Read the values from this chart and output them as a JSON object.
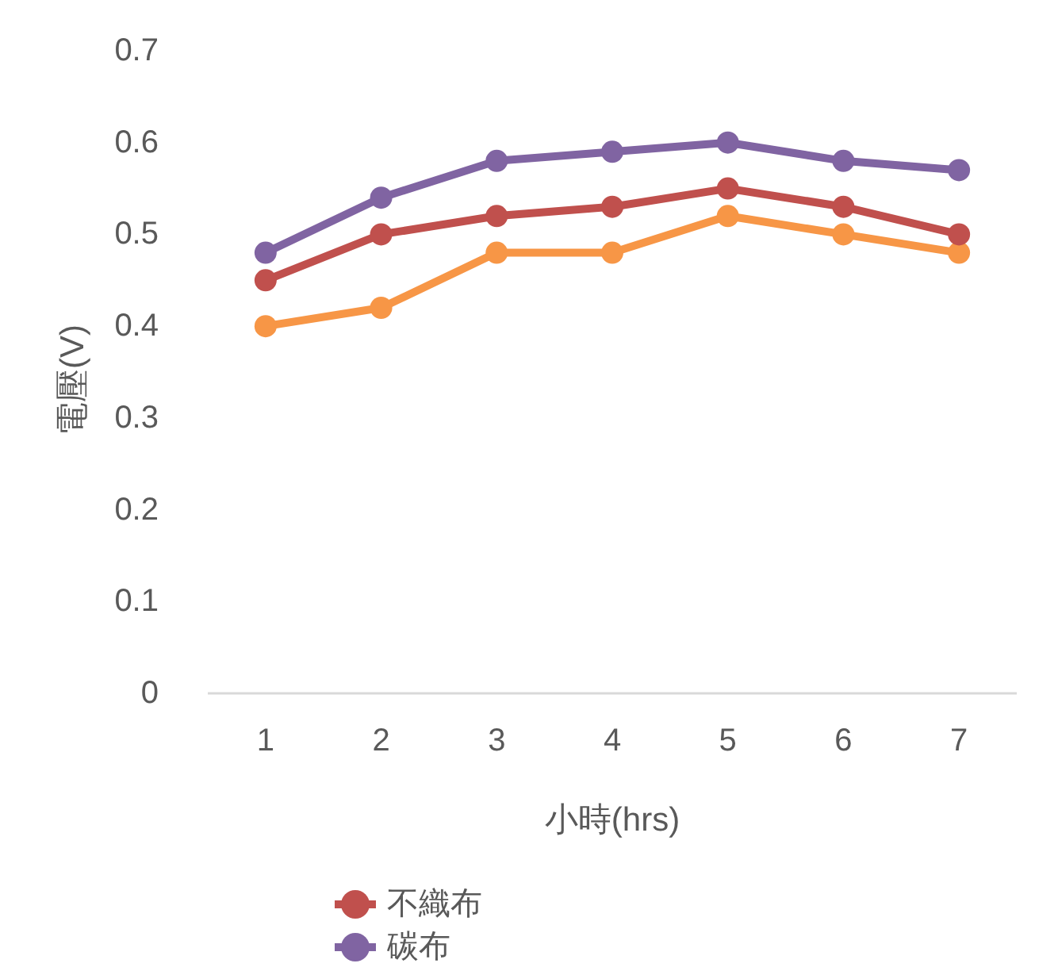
{
  "chart_data": {
    "type": "line",
    "xlabel": "小時(hrs)",
    "ylabel": "電壓(V)",
    "categories": [
      "1",
      "2",
      "3",
      "4",
      "5",
      "6",
      "7"
    ],
    "series": [
      {
        "name": "不織布",
        "color": "#c0504d",
        "values": [
          0.45,
          0.5,
          0.52,
          0.53,
          0.55,
          0.53,
          0.5
        ]
      },
      {
        "name": "碳布",
        "color": "#8064a2",
        "values": [
          0.48,
          0.54,
          0.58,
          0.59,
          0.6,
          0.58,
          0.57
        ]
      },
      {
        "color": "#f79646",
        "values": [
          0.4,
          0.42,
          0.48,
          0.48,
          0.52,
          0.5,
          0.48
        ]
      }
    ],
    "ylim": [
      0,
      0.7
    ],
    "yticks": [
      0,
      0.1,
      0.2,
      0.3,
      0.4,
      0.5,
      0.6,
      0.7
    ],
    "grid": false,
    "legend": "bottom",
    "marker": "circle",
    "line_style": "solid"
  }
}
